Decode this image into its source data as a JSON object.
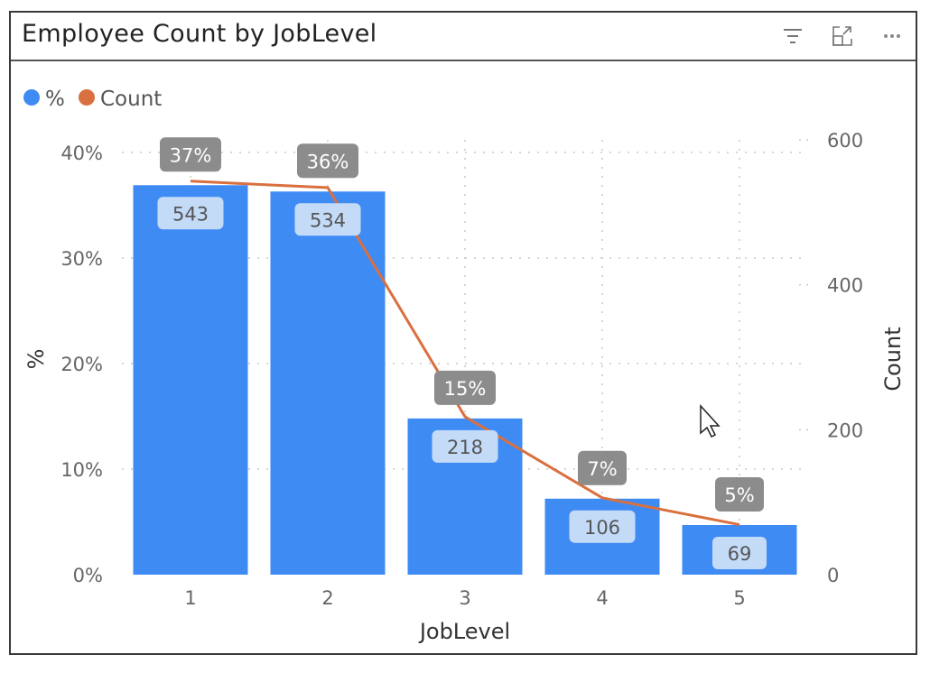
{
  "header": {
    "title": "Employee Count by JobLevel"
  },
  "icons": {
    "filter": "filter-icon",
    "focus": "focus-mode-icon",
    "more": "more-options-icon"
  },
  "colors": {
    "bar": "#3f8bf4",
    "line": "#d9703f",
    "pct_label_bg": "#8c8c8c",
    "count_label_bg": "#c4dbf8"
  },
  "chart_data": {
    "type": "bar+line",
    "title": "Employee Count by JobLevel",
    "xlabel": "JobLevel",
    "ylabel": "%",
    "y2label": "Count",
    "categories": [
      "1",
      "2",
      "3",
      "4",
      "5"
    ],
    "legend": [
      "%",
      "Count"
    ],
    "legend_position": "top-left",
    "series": [
      {
        "name": "%",
        "type": "bar",
        "values": [
          36.9,
          36.3,
          14.8,
          7.2,
          4.7
        ],
        "labels": [
          "37%",
          "36%",
          "15%",
          "7%",
          "5%"
        ]
      },
      {
        "name": "Count",
        "type": "line",
        "values": [
          543,
          534,
          218,
          106,
          69
        ],
        "labels": [
          "543",
          "534",
          "218",
          "106",
          "69"
        ]
      }
    ],
    "ylim": [
      0,
      40
    ],
    "y_ticks": [
      "0%",
      "10%",
      "20%",
      "30%",
      "40%"
    ],
    "y2lim": [
      0,
      600
    ],
    "y2_ticks": [
      "0",
      "200",
      "400",
      "600"
    ],
    "grid": true
  }
}
